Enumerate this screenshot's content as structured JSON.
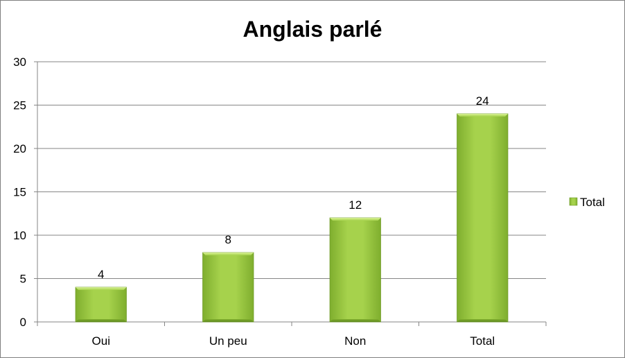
{
  "chart_data": {
    "type": "bar",
    "title": "Anglais parlé",
    "categories": [
      "Oui",
      "Un peu",
      "Non",
      "Total"
    ],
    "series": [
      {
        "name": "Total",
        "values": [
          4,
          8,
          12,
          24
        ]
      }
    ],
    "ylim": [
      0,
      30
    ],
    "yticks": [
      "0",
      "5",
      "10",
      "15",
      "20",
      "25",
      "30"
    ],
    "data_labels": [
      "4",
      "8",
      "12",
      "24"
    ],
    "grid": true,
    "legend_position": "right",
    "colors": {
      "bar": "#92c43a",
      "bar_light": "#b5e061",
      "bar_dark": "#6d9a26",
      "grid": "#868686"
    }
  }
}
